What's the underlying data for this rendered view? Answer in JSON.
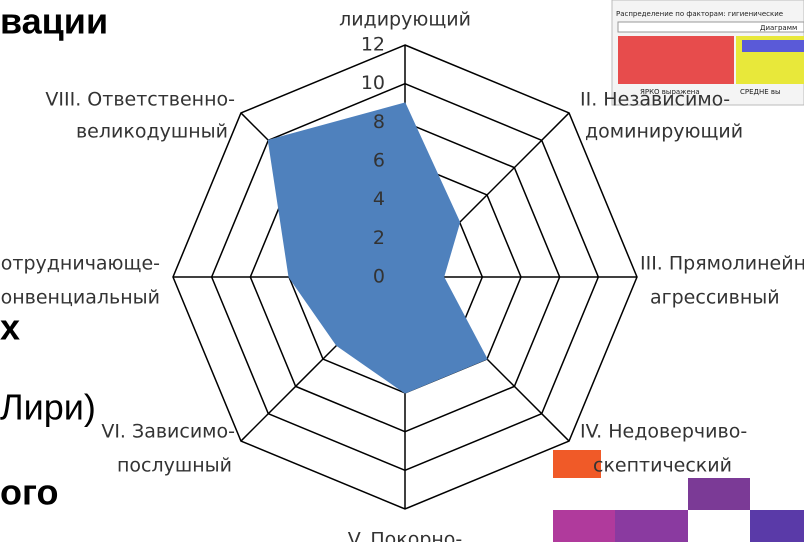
{
  "chart_data": {
    "type": "radar",
    "categories": [
      [
        "лидирующий"
      ],
      [
        "II. Независимо-",
        "доминирующий"
      ],
      [
        "III. Прямолинейно-",
        "агрессивный"
      ],
      [
        "IV. Недоверчиво-",
        "скептический"
      ],
      [
        "V. Покорно-"
      ],
      [
        "VI. Зависимо-",
        "послушный"
      ],
      [
        "VII. Сотрудничающе-",
        "конвенциальный"
      ],
      [
        "VIII. Ответственно-",
        "великодушный"
      ]
    ],
    "values": [
      9,
      4,
      2,
      6,
      6,
      5,
      6,
      10
    ],
    "color": "#4f81bd",
    "ylim": [
      0,
      12
    ],
    "yticks": [
      0,
      2,
      4,
      6,
      8,
      10,
      12
    ],
    "grid": true
  },
  "background_text": [
    "вации",
    "х",
    "Лири)",
    "ого"
  ],
  "inset": {
    "title": "Распределение по факторам: гигиенические",
    "subtitle": "Диаграмм",
    "labels": [
      "ЯРКО выражена",
      "СРЕДНЕ вы"
    ]
  }
}
